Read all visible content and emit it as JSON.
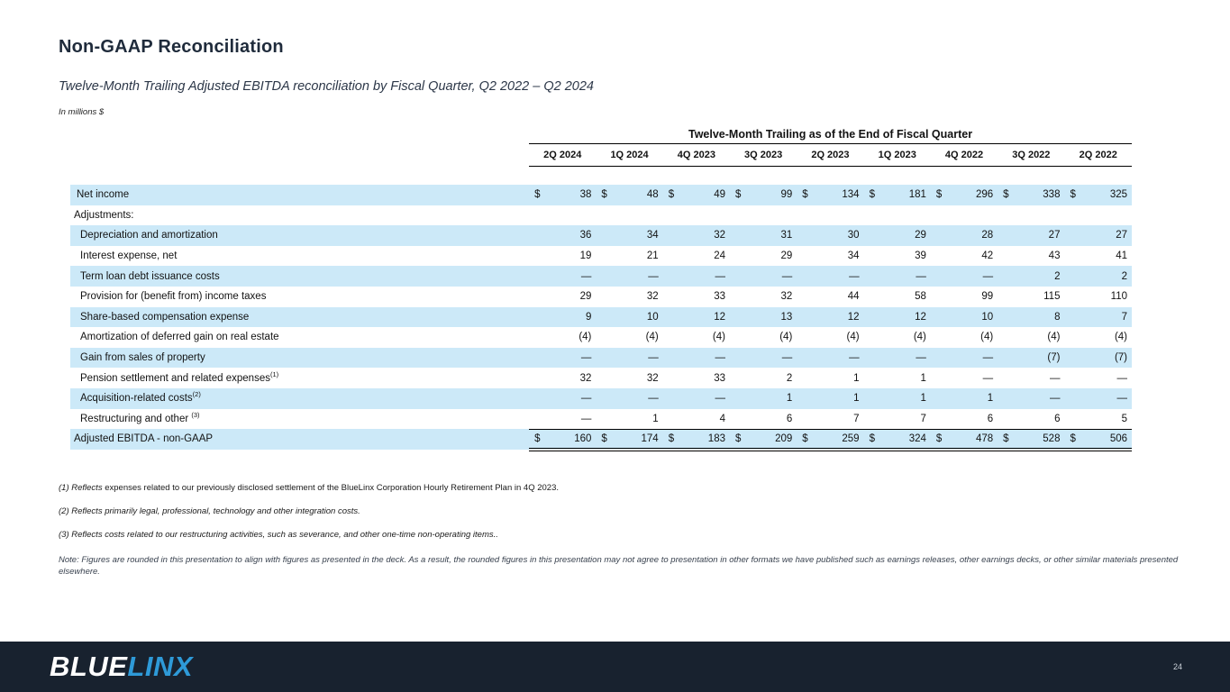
{
  "slide": {
    "title": "Non-GAAP Reconciliation",
    "subtitle": "Twelve-Month Trailing Adjusted EBITDA reconciliation by Fiscal Quarter, Q2 2022 – Q2 2024",
    "units_label": "In millions $",
    "page_number": "24"
  },
  "table": {
    "spanner": "Twelve-Month Trailing as of the End of Fiscal Quarter",
    "columns": [
      "2Q 2024",
      "1Q 2024",
      "4Q 2023",
      "3Q 2023",
      "2Q 2023",
      "1Q 2023",
      "4Q 2022",
      "3Q 2022",
      "2Q 2022"
    ],
    "rows": [
      {
        "label": "Net income",
        "sup": "",
        "indent": 1,
        "shaded": true,
        "bold": false,
        "dollar": true,
        "total": false,
        "values": [
          "38",
          "48",
          "49",
          "99",
          "134",
          "181",
          "296",
          "338",
          "325"
        ]
      },
      {
        "label": "Adjustments:",
        "sup": "",
        "indent": 0,
        "shaded": false,
        "bold": false,
        "dollar": false,
        "total": false,
        "values": [
          "",
          "",
          "",
          "",
          "",
          "",
          "",
          "",
          ""
        ]
      },
      {
        "label": "Depreciation and amortization",
        "sup": "",
        "indent": 2,
        "shaded": true,
        "bold": false,
        "dollar": false,
        "total": false,
        "values": [
          "36",
          "34",
          "32",
          "31",
          "30",
          "29",
          "28",
          "27",
          "27"
        ]
      },
      {
        "label": "Interest expense, net",
        "sup": "",
        "indent": 2,
        "shaded": false,
        "bold": false,
        "dollar": false,
        "total": false,
        "values": [
          "19",
          "21",
          "24",
          "29",
          "34",
          "39",
          "42",
          "43",
          "41"
        ]
      },
      {
        "label": "Term loan debt issuance costs",
        "sup": "",
        "indent": 2,
        "shaded": true,
        "bold": false,
        "dollar": false,
        "total": false,
        "values": [
          "—",
          "—",
          "—",
          "—",
          "—",
          "—",
          "—",
          "2",
          "2"
        ]
      },
      {
        "label": "Provision for (benefit from) income taxes",
        "sup": "",
        "indent": 2,
        "shaded": false,
        "bold": false,
        "dollar": false,
        "total": false,
        "values": [
          "29",
          "32",
          "33",
          "32",
          "44",
          "58",
          "99",
          "115",
          "110"
        ]
      },
      {
        "label": "Share-based compensation expense",
        "sup": "",
        "indent": 2,
        "shaded": true,
        "bold": false,
        "dollar": false,
        "total": false,
        "values": [
          "9",
          "10",
          "12",
          "13",
          "12",
          "12",
          "10",
          "8",
          "7"
        ]
      },
      {
        "label": "Amortization of deferred gain on real estate",
        "sup": "",
        "indent": 2,
        "shaded": false,
        "bold": false,
        "dollar": false,
        "total": false,
        "values": [
          "(4)",
          "(4)",
          "(4)",
          "(4)",
          "(4)",
          "(4)",
          "(4)",
          "(4)",
          "(4)"
        ]
      },
      {
        "label": "Gain from sales of property",
        "sup": "",
        "indent": 2,
        "shaded": true,
        "bold": false,
        "dollar": false,
        "total": false,
        "values": [
          "—",
          "—",
          "—",
          "—",
          "—",
          "—",
          "—",
          "(7)",
          "(7)"
        ]
      },
      {
        "label": "Pension settlement and related expenses",
        "sup": "(1)",
        "indent": 2,
        "shaded": false,
        "bold": false,
        "dollar": false,
        "total": false,
        "values": [
          "32",
          "32",
          "33",
          "2",
          "1",
          "1",
          "—",
          "—",
          "—"
        ]
      },
      {
        "label": "Acquisition-related costs",
        "sup": "(2)",
        "indent": 2,
        "shaded": true,
        "bold": false,
        "dollar": false,
        "total": false,
        "values": [
          "—",
          "—",
          "—",
          "1",
          "1",
          "1",
          "1",
          "—",
          "—"
        ]
      },
      {
        "label": "Restructuring and other ",
        "sup": "(3)",
        "indent": 2,
        "shaded": false,
        "bold": false,
        "dollar": false,
        "total": false,
        "values": [
          "—",
          "1",
          "4",
          "6",
          "7",
          "7",
          "6",
          "6",
          "5"
        ]
      },
      {
        "label": "Adjusted EBITDA - non-GAAP",
        "sup": "",
        "indent": 0,
        "shaded": true,
        "bold": true,
        "dollar": true,
        "total": true,
        "values": [
          "160",
          "174",
          "183",
          "209",
          "259",
          "324",
          "478",
          "528",
          "506"
        ]
      }
    ]
  },
  "footnotes": [
    {
      "lead": "(1) Reflects",
      "rest": " expenses related to our previously disclosed settlement of the BlueLinx Corporation Hourly Retirement Plan in 4Q 2023."
    },
    {
      "lead": "(2) Reflects primarily legal, professional, technology and other integration costs.",
      "rest": ""
    },
    {
      "lead": "(3) Reflects costs related to our restructuring activities, such as severance, and other one-time non-operating items..",
      "rest": ""
    }
  ],
  "note": "Note: Figures are rounded in this presentation to align with figures as presented in the deck.  As a result, the rounded figures in this presentation may not agree to presentation in other formats we have published such as earnings releases, other earnings decks, or other similar materials presented elsewhere.",
  "footer": {
    "logo_blue": "BLUE",
    "logo_linx": "LINX"
  },
  "colors": {
    "stripe_blue": "#cce9f8",
    "footer_bar": "#18222f",
    "logo_accent": "#2e9ad8",
    "title_navy": "#1f2b3b"
  }
}
